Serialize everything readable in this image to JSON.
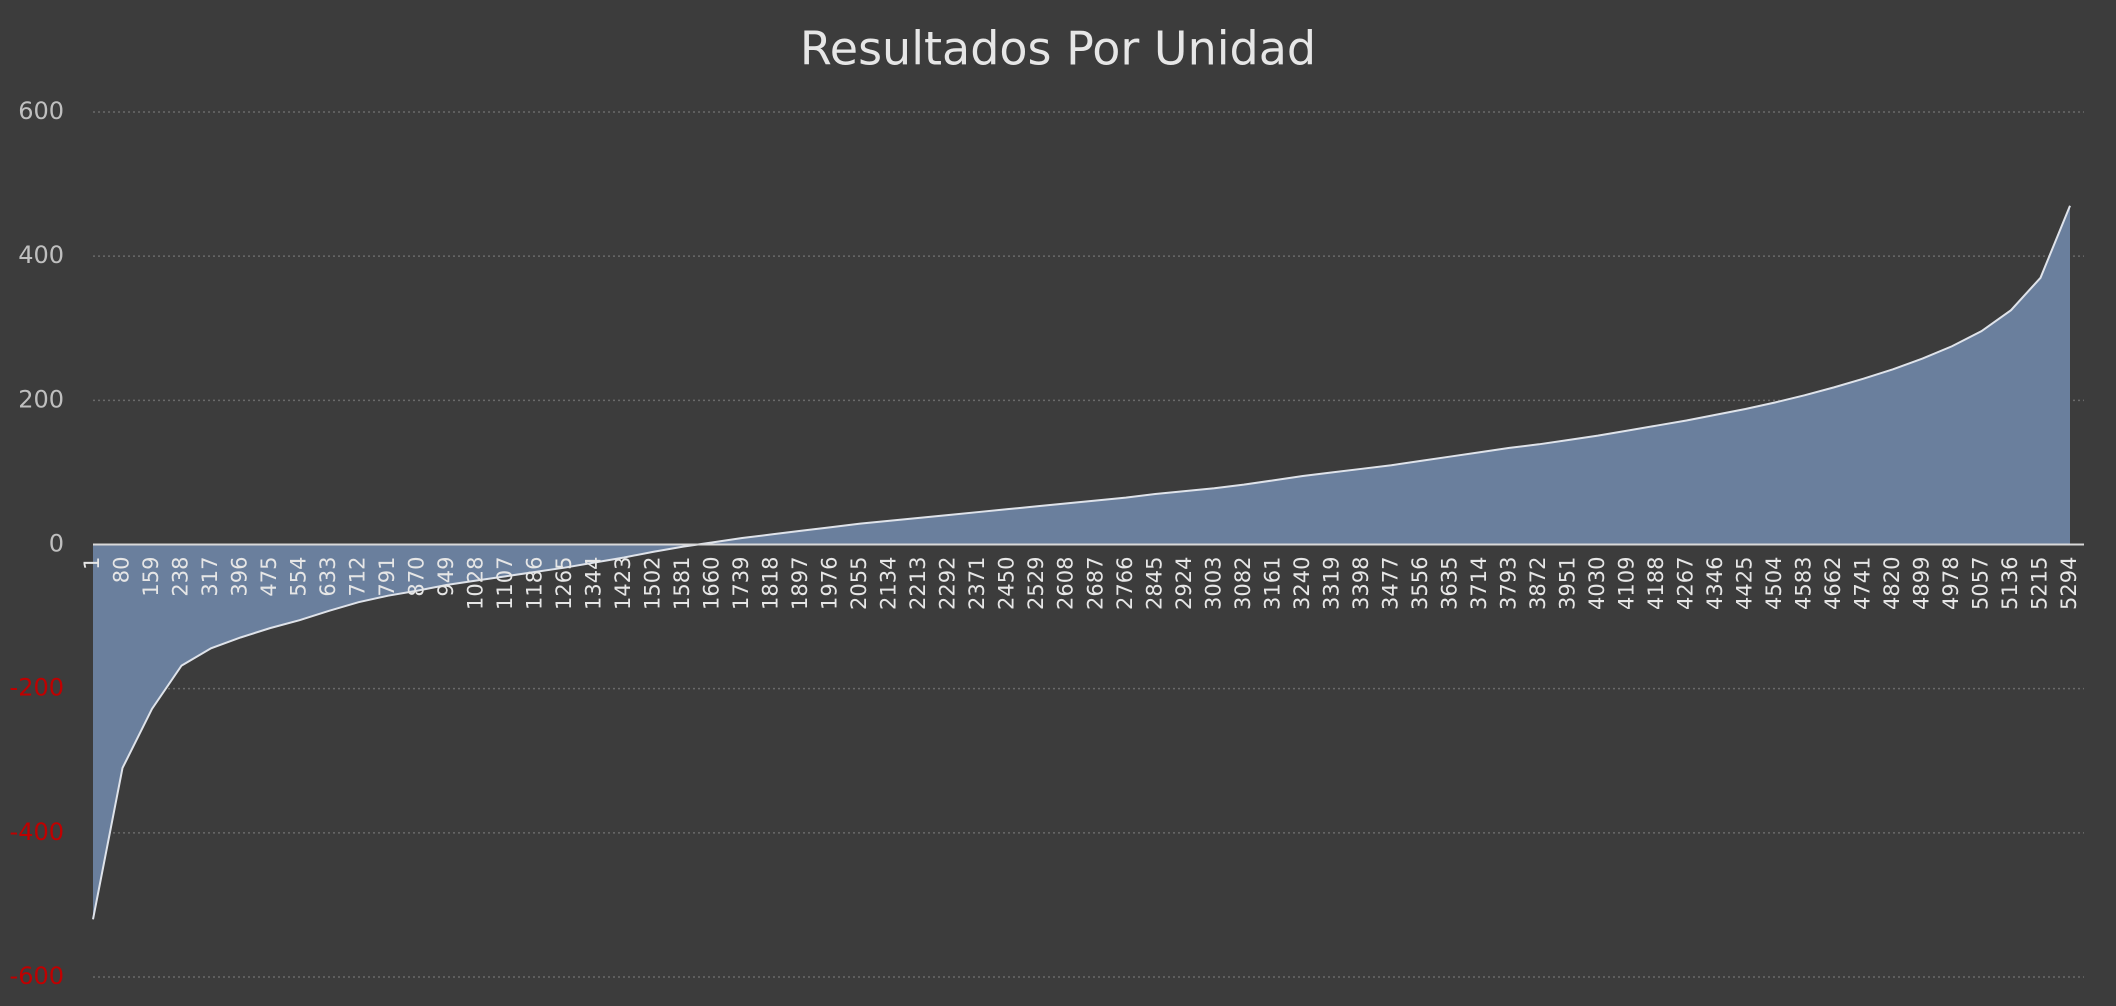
{
  "chart_data": {
    "type": "area",
    "title": "Resultados Por Unidad",
    "categories": [
      "1",
      "80",
      "159",
      "238",
      "317",
      "396",
      "475",
      "554",
      "633",
      "712",
      "791",
      "870",
      "949",
      "1028",
      "1107",
      "1186",
      "1265",
      "1344",
      "1423",
      "1502",
      "1581",
      "1660",
      "1739",
      "1818",
      "1897",
      "1976",
      "2055",
      "2134",
      "2213",
      "2292",
      "2371",
      "2450",
      "2529",
      "2608",
      "2687",
      "2766",
      "2845",
      "2924",
      "3003",
      "3082",
      "3161",
      "3240",
      "3319",
      "3398",
      "3477",
      "3556",
      "3635",
      "3714",
      "3793",
      "3872",
      "3951",
      "4030",
      "4109",
      "4188",
      "4267",
      "4346",
      "4425",
      "4504",
      "4583",
      "4662",
      "4741",
      "4820",
      "4899",
      "4978",
      "5057",
      "5136",
      "5215",
      "5294"
    ],
    "values": [
      -520,
      -310,
      -228,
      -168,
      -144,
      -129,
      -116,
      -105,
      -92,
      -80,
      -71,
      -64,
      -56,
      -50,
      -44,
      -38,
      -32,
      -25,
      -18,
      -10,
      -3,
      3,
      9,
      14,
      19,
      24,
      29,
      33,
      37,
      41,
      45,
      49,
      53,
      57,
      61,
      65,
      70,
      74,
      78,
      83,
      89,
      95,
      100,
      105,
      110,
      116,
      122,
      128,
      134,
      139,
      145,
      151,
      158,
      165,
      172,
      180,
      188,
      197,
      207,
      218,
      230,
      243,
      258,
      275,
      296,
      325,
      370,
      470
    ],
    "color": "#6a7f9d",
    "line_color": "#dfe3ea",
    "ylim": [
      -600,
      600
    ],
    "yticks": [
      -600,
      -400,
      -200,
      0,
      200,
      400,
      600
    ],
    "grid": true,
    "tick_color": "#bfbfbf",
    "negative_tick_color": "#c00000"
  }
}
